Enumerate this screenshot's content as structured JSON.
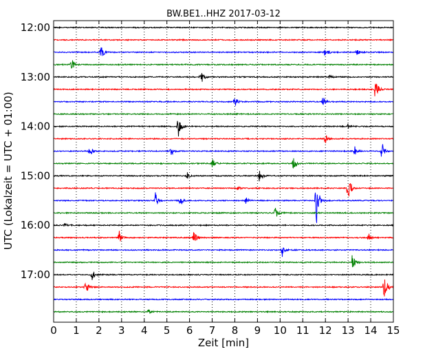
{
  "chart_data": {
    "type": "line",
    "title": "BW.BE1..HHZ 2017-03-12",
    "xlabel": "Zeit  [min]",
    "ylabel": "UTC (Lokalzeit = UTC + 01:00)",
    "xlim": [
      0,
      15
    ],
    "x_ticks": [
      "0",
      "1",
      "2",
      "3",
      "4",
      "5",
      "6",
      "7",
      "8",
      "9",
      "10",
      "11",
      "12",
      "13",
      "14",
      "15"
    ],
    "y_tick_labels": [
      "12:00",
      "13:00",
      "14:00",
      "15:00",
      "16:00",
      "17:00"
    ],
    "grid": "vertical-dotted",
    "color_cycle": [
      "#000000",
      "#ff0000",
      "#0000ff",
      "#008000"
    ],
    "trace_interval_min": 15,
    "traces": [
      {
        "start": "12:00",
        "color": "#000000",
        "events": []
      },
      {
        "start": "12:15",
        "color": "#ff0000",
        "events": []
      },
      {
        "start": "12:30",
        "color": "#0000ff",
        "events": [
          {
            "t": 2.1,
            "amp": 0.7
          },
          {
            "t": 12.0,
            "amp": 0.8
          },
          {
            "t": 13.4,
            "amp": 0.35
          }
        ]
      },
      {
        "start": "12:45",
        "color": "#008000",
        "events": [
          {
            "t": 0.8,
            "amp": 0.6
          }
        ]
      },
      {
        "start": "13:00",
        "color": "#000000",
        "events": [
          {
            "t": 6.5,
            "amp": 0.8
          },
          {
            "t": 12.2,
            "amp": 0.2
          }
        ]
      },
      {
        "start": "13:15",
        "color": "#ff0000",
        "events": [
          {
            "t": 14.2,
            "amp": 1.4
          }
        ]
      },
      {
        "start": "13:30",
        "color": "#0000ff",
        "events": [
          {
            "t": 8.0,
            "amp": 0.5
          },
          {
            "t": 11.9,
            "amp": 0.5
          }
        ]
      },
      {
        "start": "13:45",
        "color": "#008000",
        "events": []
      },
      {
        "start": "14:00",
        "color": "#000000",
        "events": [
          {
            "t": 5.5,
            "amp": 1.3
          },
          {
            "t": 13.0,
            "amp": 0.3
          }
        ]
      },
      {
        "start": "14:15",
        "color": "#ff0000",
        "events": [
          {
            "t": 12.0,
            "amp": 0.6
          }
        ]
      },
      {
        "start": "14:30",
        "color": "#0000ff",
        "events": [
          {
            "t": 1.6,
            "amp": 0.5
          },
          {
            "t": 5.2,
            "amp": 0.5
          },
          {
            "t": 13.3,
            "amp": 0.5
          },
          {
            "t": 14.5,
            "amp": 0.9
          }
        ]
      },
      {
        "start": "14:45",
        "color": "#008000",
        "events": [
          {
            "t": 7.0,
            "amp": 0.6
          },
          {
            "t": 10.6,
            "amp": 0.7
          }
        ]
      },
      {
        "start": "15:00",
        "color": "#000000",
        "events": [
          {
            "t": 5.9,
            "amp": 0.3
          },
          {
            "t": 9.1,
            "amp": 0.7
          }
        ]
      },
      {
        "start": "15:15",
        "color": "#ff0000",
        "events": [
          {
            "t": 8.1,
            "amp": 0.3
          },
          {
            "t": 13.0,
            "amp": 1.6
          }
        ]
      },
      {
        "start": "15:30",
        "color": "#0000ff",
        "events": [
          {
            "t": 4.5,
            "amp": 0.7
          },
          {
            "t": 5.6,
            "amp": 0.5
          },
          {
            "t": 8.5,
            "amp": 0.3
          },
          {
            "t": 11.6,
            "amp": 2.2
          }
        ]
      },
      {
        "start": "15:45",
        "color": "#008000",
        "events": [
          {
            "t": 9.8,
            "amp": 0.7
          }
        ]
      },
      {
        "start": "16:00",
        "color": "#000000",
        "events": [
          {
            "t": 0.5,
            "amp": 0.2
          }
        ]
      },
      {
        "start": "16:15",
        "color": "#ff0000",
        "events": [
          {
            "t": 2.9,
            "amp": 0.6
          },
          {
            "t": 6.2,
            "amp": 1.0
          },
          {
            "t": 13.9,
            "amp": 0.4
          }
        ]
      },
      {
        "start": "16:30",
        "color": "#0000ff",
        "events": [
          {
            "t": 10.1,
            "amp": 0.6
          }
        ]
      },
      {
        "start": "16:45",
        "color": "#008000",
        "events": [
          {
            "t": 13.2,
            "amp": 0.9
          }
        ]
      },
      {
        "start": "17:00",
        "color": "#000000",
        "events": [
          {
            "t": 1.7,
            "amp": 0.8
          }
        ]
      },
      {
        "start": "17:15",
        "color": "#ff0000",
        "events": [
          {
            "t": 1.4,
            "amp": 0.8
          },
          {
            "t": 14.6,
            "amp": 1.6
          }
        ]
      },
      {
        "start": "17:30",
        "color": "#0000ff",
        "events": []
      },
      {
        "start": "17:45",
        "color": "#008000",
        "events": [
          {
            "t": 4.2,
            "amp": 0.25
          }
        ]
      }
    ]
  }
}
